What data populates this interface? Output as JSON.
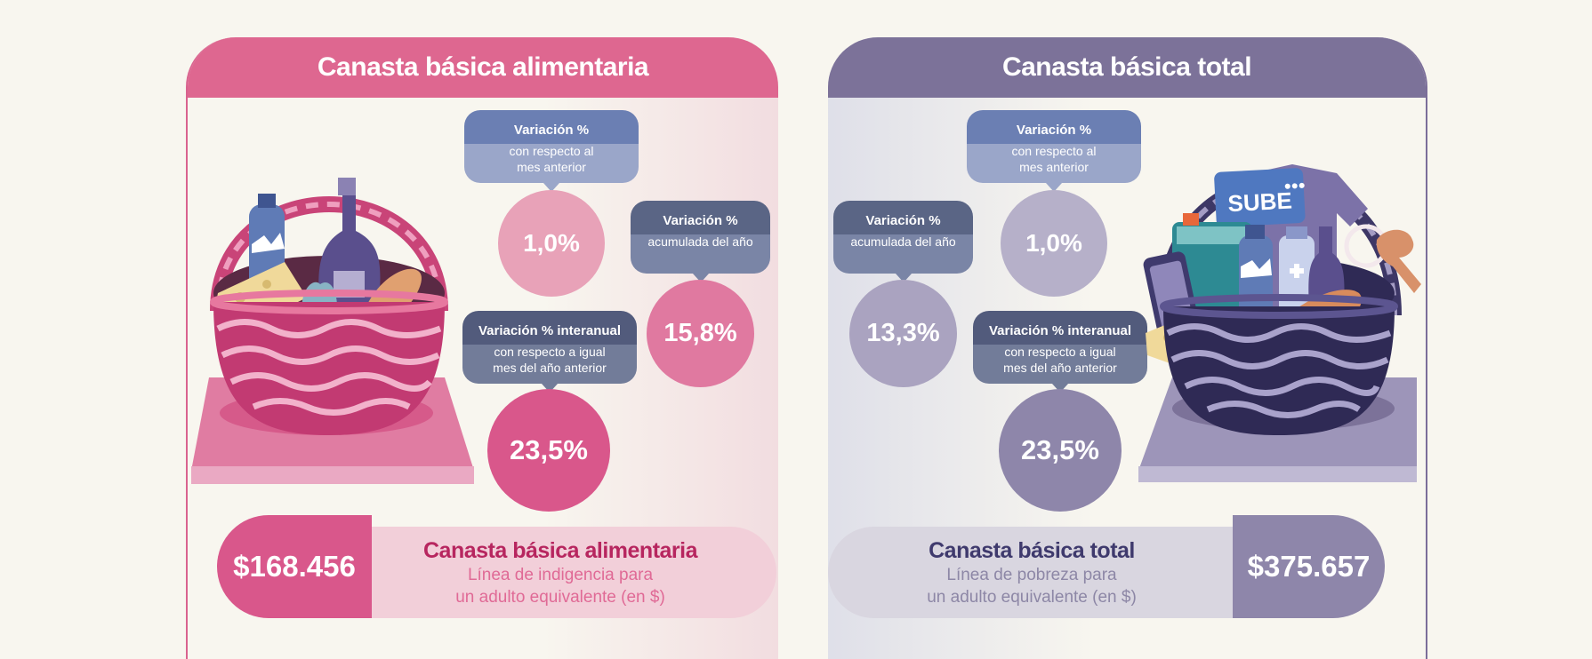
{
  "left": {
    "title": "Canasta básica alimentaria",
    "callout_monthly": {
      "title": "Variación %",
      "sub_line1": "con respecto al",
      "sub_line2": "mes anterior"
    },
    "callout_accum": {
      "title": "Variación %",
      "sub_line1": "acumulada del año"
    },
    "callout_interannual": {
      "title": "Variación % interanual",
      "sub_line1": "con respecto a igual",
      "sub_line2": "mes del año anterior"
    },
    "value_monthly": "1,0%",
    "value_accum": "15,8%",
    "value_interannual": "23,5%",
    "price": "$168.456",
    "bar_title": "Canasta básica alimentaria",
    "bar_line1": "Línea de indigencia para",
    "bar_line2": "un adulto equivalente (en $)"
  },
  "right": {
    "title": "Canasta básica total",
    "callout_monthly": {
      "title": "Variación %",
      "sub_line1": "con respecto al",
      "sub_line2": "mes anterior"
    },
    "callout_accum": {
      "title": "Variación %",
      "sub_line1": "acumulada del año"
    },
    "callout_interannual": {
      "title": "Variación % interanual",
      "sub_line1": "con respecto a igual",
      "sub_line2": "mes del año anterior"
    },
    "value_monthly": "1,0%",
    "value_accum": "13,3%",
    "value_interannual": "23,5%",
    "price": "$375.657",
    "bar_title": "Canasta básica total",
    "bar_line1": "Línea de pobreza para",
    "bar_line2": "un adulto equivalente (en $)",
    "card_logo": "SUBE"
  },
  "colors": {
    "pink_header": "#de6790",
    "purple_header": "#7c7299",
    "callout_blue": "#6b7fb3",
    "callout_dark": "#5a6585"
  }
}
